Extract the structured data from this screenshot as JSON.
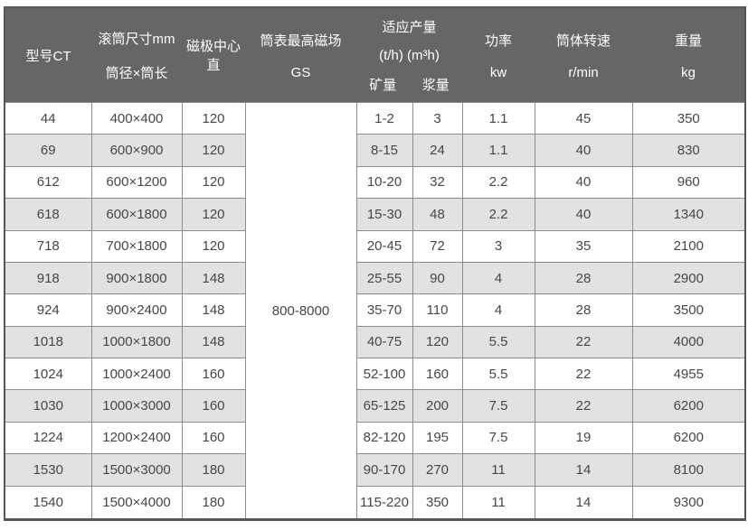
{
  "table": {
    "header": {
      "model": "型号CT",
      "drum_size_line1": "滚筒尺寸mm",
      "drum_size_line2": "筒径×筒长",
      "pole_center": "磁极中心直",
      "max_field_line1": "筒表最高磁场",
      "max_field_line2": "GS",
      "capacity_line1": "适应产量",
      "capacity_line2": "(t/h) (m³h)",
      "capacity_ore": "矿量",
      "capacity_slurry": "浆量",
      "power_line1": "功率",
      "power_line2": "kw",
      "speed_line1": "筒体转速",
      "speed_line2": "r/min",
      "weight_line1": "重量",
      "weight_line2": "kg"
    },
    "merged_gs_value": "800-8000",
    "rows": [
      {
        "model": "44",
        "drum": "400×400",
        "pole": "120",
        "ore": "1-2",
        "slurry": "3",
        "power": "1.1",
        "speed": "45",
        "weight": "350"
      },
      {
        "model": "69",
        "drum": "600×900",
        "pole": "120",
        "ore": "8-15",
        "slurry": "24",
        "power": "1.1",
        "speed": "40",
        "weight": "830"
      },
      {
        "model": "612",
        "drum": "600×1200",
        "pole": "120",
        "ore": "10-20",
        "slurry": "32",
        "power": "2.2",
        "speed": "40",
        "weight": "960"
      },
      {
        "model": "618",
        "drum": "600×1800",
        "pole": "120",
        "ore": "15-30",
        "slurry": "48",
        "power": "2.2",
        "speed": "40",
        "weight": "1340"
      },
      {
        "model": "718",
        "drum": "700×1800",
        "pole": "120",
        "ore": "20-45",
        "slurry": "72",
        "power": "3",
        "speed": "35",
        "weight": "2100"
      },
      {
        "model": "918",
        "drum": "900×1800",
        "pole": "148",
        "ore": "25-55",
        "slurry": "90",
        "power": "4",
        "speed": "28",
        "weight": "2900"
      },
      {
        "model": "924",
        "drum": "900×2400",
        "pole": "148",
        "ore": "35-70",
        "slurry": "110",
        "power": "4",
        "speed": "28",
        "weight": "3500"
      },
      {
        "model": "1018",
        "drum": "1000×1800",
        "pole": "148",
        "ore": "40-75",
        "slurry": "120",
        "power": "5.5",
        "speed": "22",
        "weight": "4000"
      },
      {
        "model": "1024",
        "drum": "1000×2400",
        "pole": "160",
        "ore": "52-100",
        "slurry": "160",
        "power": "5.5",
        "speed": "22",
        "weight": "4955"
      },
      {
        "model": "1030",
        "drum": "1000×3000",
        "pole": "160",
        "ore": "65-125",
        "slurry": "200",
        "power": "7.5",
        "speed": "22",
        "weight": "6200"
      },
      {
        "model": "1224",
        "drum": "1200×2400",
        "pole": "160",
        "ore": "82-120",
        "slurry": "195",
        "power": "7.5",
        "speed": "19",
        "weight": "6200"
      },
      {
        "model": "1530",
        "drum": "1500×3000",
        "pole": "180",
        "ore": "90-170",
        "slurry": "270",
        "power": "11",
        "speed": "14",
        "weight": "8100"
      },
      {
        "model": "1540",
        "drum": "1500×4000",
        "pole": "180",
        "ore": "115-220",
        "slurry": "350",
        "power": "11",
        "speed": "14",
        "weight": "9300"
      }
    ]
  },
  "colors": {
    "header_bg": "#666668",
    "header_text": "#ffffff",
    "row_stripe": "#e2e2e2",
    "row_white": "#ffffff",
    "cell_border": "#8c8c8c",
    "outer_border": "#565656",
    "data_text": "#43464d"
  }
}
